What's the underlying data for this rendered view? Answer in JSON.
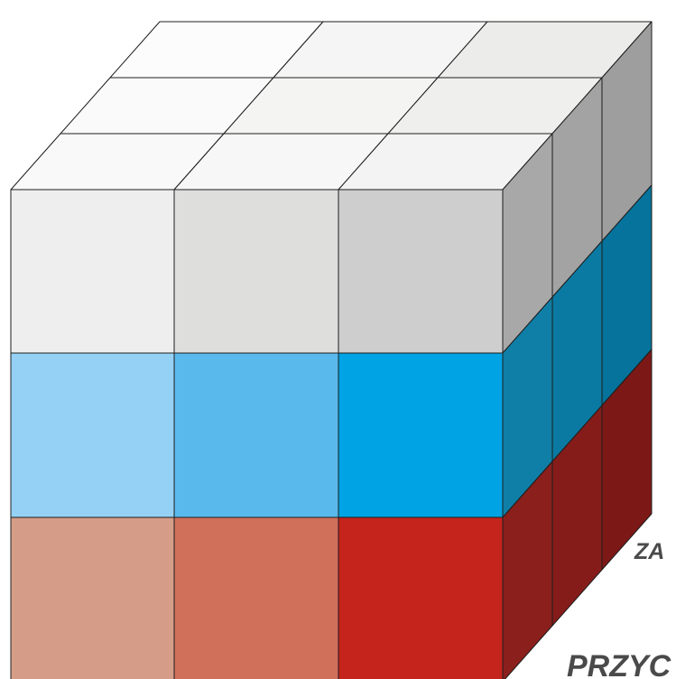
{
  "cube": {
    "grid": {
      "columns": 3,
      "rows": 3,
      "depth": 3
    },
    "front_colors": [
      [
        "#eeeeee",
        "#dededc",
        "#cecece"
      ],
      [
        "#95d1f5",
        "#59b9ec",
        "#00a3e3"
      ],
      [
        "#d59d88",
        "#d06f5a",
        "#c4241c"
      ]
    ],
    "top_colors": [
      [
        "#f9f9f9",
        "#f7f7f7",
        "#f3f3f3"
      ],
      [
        "#fafafa",
        "#f4f4f3",
        "#efefee"
      ],
      [
        "#fcfcfc",
        "#f5f5f5",
        "#ececeb"
      ]
    ],
    "side_colors": [
      [
        "#a8a8a8",
        "#a3a3a3",
        "#9e9e9e"
      ],
      [
        "#0f7fa7",
        "#0a7aa2",
        "#05739b"
      ],
      [
        "#8a1f1c",
        "#851c1a",
        "#7c1816"
      ]
    ]
  },
  "labels": {
    "depth_axis_partial": "ZA",
    "bottom_axis_partial": "PRZYC"
  }
}
